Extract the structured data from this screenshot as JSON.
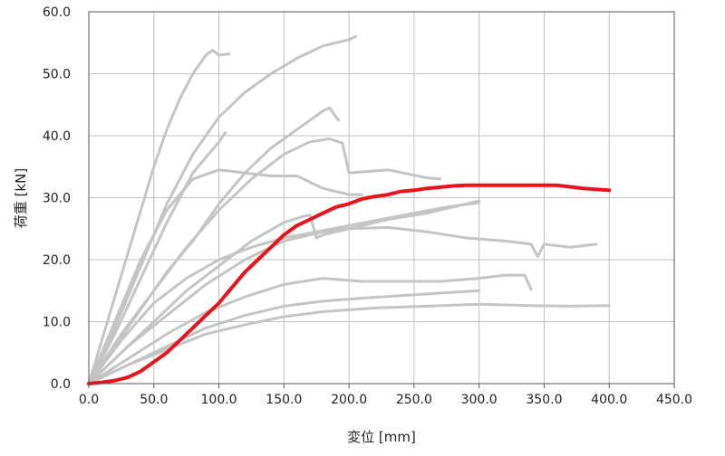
{
  "chart_data": {
    "type": "line",
    "title": "",
    "xlabel": "変位 [mm]",
    "ylabel": "荷重 [kN]",
    "xlim": [
      0,
      450
    ],
    "ylim": [
      0,
      60
    ],
    "x_ticks": [
      0,
      50,
      100,
      150,
      200,
      250,
      300,
      350,
      400,
      450
    ],
    "y_ticks": [
      0,
      10,
      20,
      30,
      40,
      50,
      60
    ],
    "x_tick_labels": [
      "0.0",
      "50.0",
      "100.0",
      "150.0",
      "200.0",
      "250.0",
      "300.0",
      "350.0",
      "400.0",
      "450.0"
    ],
    "y_tick_labels": [
      "0.0",
      "10.0",
      "20.0",
      "30.0",
      "40.0",
      "50.0",
      "60.0"
    ],
    "grid": true,
    "legend": "none",
    "colors": {
      "highlight": "#e8141c",
      "background_series": "#c4c4c4",
      "grid": "#bfbfbf",
      "axis": "#555555"
    },
    "series": [
      {
        "color": "#c4c4c4",
        "x": [
          0,
          10,
          20,
          30,
          40,
          50,
          60,
          70,
          80,
          90,
          95,
          100,
          108
        ],
        "y": [
          0,
          7,
          14,
          21,
          28,
          35,
          41,
          46,
          50,
          53,
          53.8,
          53,
          53.2
        ]
      },
      {
        "color": "#c4c4c4",
        "x": [
          0,
          20,
          40,
          60,
          80,
          100,
          120,
          140,
          160,
          180,
          200,
          205
        ],
        "y": [
          0,
          9,
          19,
          29,
          37,
          43,
          47,
          50,
          52.5,
          54.5,
          55.5,
          56
        ]
      },
      {
        "color": "#c4c4c4",
        "x": [
          0,
          20,
          40,
          60,
          80,
          100,
          105
        ],
        "y": [
          0,
          8,
          17,
          26,
          34,
          39,
          40.5
        ]
      },
      {
        "color": "#c4c4c4",
        "x": [
          0,
          20,
          40,
          60,
          80,
          100,
          120,
          140,
          160,
          180,
          185,
          190,
          192
        ],
        "y": [
          0,
          6,
          12,
          18,
          23,
          29,
          34,
          38,
          41,
          44,
          44.5,
          43,
          42.5
        ]
      },
      {
        "color": "#c4c4c4",
        "x": [
          0,
          25,
          50,
          75,
          100,
          125,
          150,
          170,
          185,
          195,
          200,
          230,
          260,
          270
        ],
        "y": [
          0,
          8,
          15,
          22,
          28,
          33,
          37,
          39,
          39.5,
          38.8,
          34,
          34.5,
          33.2,
          33
        ]
      },
      {
        "color": "#c4c4c4",
        "x": [
          0,
          20,
          40,
          60,
          80,
          100,
          120,
          140,
          150,
          160,
          180,
          200,
          210
        ],
        "y": [
          0,
          10,
          20,
          28,
          33,
          34.5,
          34,
          33.5,
          33.5,
          33.5,
          31.5,
          30.5,
          30.5
        ]
      },
      {
        "color": "#c4c4c4",
        "x": [
          0,
          25,
          50,
          75,
          100,
          125,
          150,
          165,
          170,
          175,
          180,
          200,
          230,
          260,
          280,
          300
        ],
        "y": [
          0,
          5,
          10,
          15,
          19,
          23,
          26,
          27,
          27.2,
          23.5,
          24,
          25,
          26.5,
          27.5,
          28.5,
          29.5
        ]
      },
      {
        "color": "#c4c4c4",
        "x": [
          0,
          30,
          60,
          90,
          120,
          150,
          180,
          200,
          230,
          260,
          290,
          320,
          340,
          345,
          350,
          370,
          390
        ],
        "y": [
          0,
          6,
          11,
          16,
          20,
          23,
          24.5,
          25,
          25.2,
          24.5,
          23.5,
          23,
          22.5,
          20.5,
          22.5,
          22,
          22.5
        ]
      },
      {
        "color": "#c4c4c4",
        "x": [
          0,
          25,
          50,
          75,
          100,
          125,
          150,
          175,
          200,
          225,
          250,
          275,
          300
        ],
        "y": [
          0,
          7,
          13,
          17,
          20,
          22,
          23.5,
          24.5,
          25.5,
          26.5,
          27.5,
          28.5,
          29.2
        ]
      },
      {
        "color": "#c4c4c4",
        "x": [
          0,
          30,
          60,
          90,
          120,
          150,
          180,
          210,
          240,
          270,
          300,
          320,
          335,
          340
        ],
        "y": [
          0,
          4,
          8,
          11.5,
          14,
          16,
          17,
          16.5,
          16.5,
          16.5,
          17,
          17.5,
          17.5,
          15.2
        ]
      },
      {
        "color": "#c4c4c4",
        "x": [
          0,
          30,
          60,
          90,
          120,
          150,
          180,
          210,
          240,
          270,
          300
        ],
        "y": [
          0,
          3,
          6,
          9,
          11,
          12.5,
          13.3,
          13.8,
          14.2,
          14.6,
          15
        ]
      },
      {
        "color": "#c4c4c4",
        "x": [
          0,
          30,
          60,
          90,
          120,
          150,
          180,
          220,
          260,
          300,
          340,
          370,
          400
        ],
        "y": [
          0,
          3,
          5.5,
          8,
          9.5,
          10.8,
          11.6,
          12.2,
          12.5,
          12.8,
          12.6,
          12.5,
          12.6
        ]
      },
      {
        "color": "#e8141c",
        "highlight": true,
        "x": [
          0,
          10,
          20,
          30,
          40,
          50,
          60,
          70,
          80,
          90,
          100,
          110,
          120,
          130,
          140,
          150,
          160,
          170,
          180,
          190,
          200,
          210,
          220,
          230,
          240,
          250,
          260,
          270,
          280,
          290,
          300,
          320,
          340,
          360,
          380,
          400
        ],
        "y": [
          0,
          0.2,
          0.5,
          1,
          2,
          3.5,
          5,
          7,
          9,
          11,
          13,
          15.5,
          18,
          20,
          22,
          24,
          25.5,
          26.5,
          27.5,
          28.5,
          29,
          29.8,
          30.2,
          30.5,
          31,
          31.2,
          31.5,
          31.7,
          31.9,
          32,
          32,
          32,
          32,
          32,
          31.5,
          31.2
        ]
      }
    ]
  }
}
